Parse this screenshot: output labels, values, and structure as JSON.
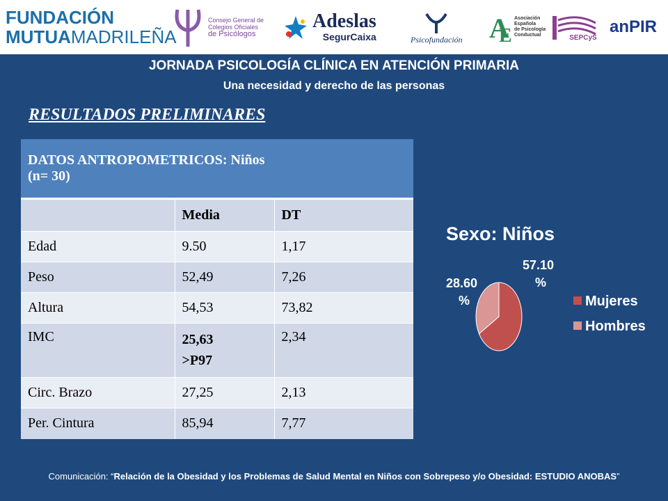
{
  "logos": {
    "fundacion_line1": "FUNDACIÓN",
    "fundacion_line2_bold": "MUTUA",
    "fundacion_line2_light": "MADRILEÑA",
    "consejo": [
      "Consejo General de",
      "Colegios Oficiales",
      "de Psicólogos"
    ],
    "adeslas_1": "Adeslas",
    "adeslas_2": "SegurCaixa",
    "psicofundacion": "Psicofundación",
    "aepc": [
      "Asociación",
      "Española",
      "de Psicología",
      "Conductual"
    ],
    "sepcys": "SEPCyS",
    "anpir": "anPIR"
  },
  "header": {
    "title": "JORNADA PSICOLOGÍA CLÍNICA EN ATENCIÓN PRIMARIA",
    "subtitle": "Una necesidad y derecho de las personas"
  },
  "section_title": "RESULTADOS PRELIMINARES",
  "table": {
    "title_line1": "DATOS ANTROPOMETRICOS: Niños",
    "title_line2": "(n= 30)",
    "col_media": "Media",
    "col_dt": "DT",
    "rows": [
      {
        "label": "Edad",
        "media": "9.50",
        "dt": "1,17"
      },
      {
        "label": "Peso",
        "media": "52,49",
        "dt": "7,26"
      },
      {
        "label": "Altura",
        "media": "54,53",
        "dt": "73,82"
      },
      {
        "label": "IMC",
        "media": "25,63",
        "media_extra": ">P97",
        "dt": "2,34"
      },
      {
        "label": "Circ. Brazo",
        "media": "27,25",
        "dt": "2,13"
      },
      {
        "label": "Per. Cintura",
        "media": "85,94",
        "dt": "7,77"
      }
    ]
  },
  "chart_data": {
    "type": "pie",
    "title": "Sexo: Niños",
    "categories": [
      "Mujeres",
      "Hombres"
    ],
    "values": [
      57.1,
      28.6
    ],
    "data_labels": [
      "57.10 %",
      "28.60 %"
    ],
    "colors": [
      "#c0504d",
      "#d99694"
    ],
    "legend_position": "right"
  },
  "footer": {
    "prefix": "Comunicación: “",
    "text": "Relación de la Obesidad y los Problemas de Salud Mental en Niños con Sobrepeso y/o Obesidad: ESTUDIO ANOBAS",
    "suffix": "”"
  }
}
